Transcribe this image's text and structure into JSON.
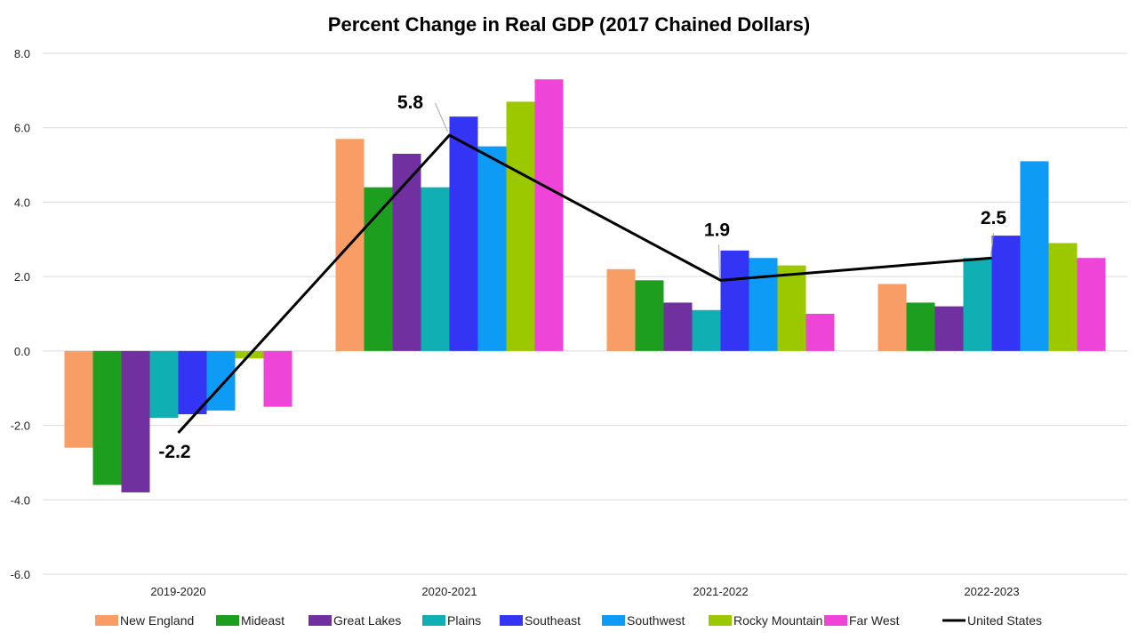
{
  "chart_data": {
    "type": "bar",
    "title": "Percent Change in Real GDP (2017 Chained Dollars)",
    "xlabel": "",
    "ylabel": "",
    "categories": [
      "2019-2020",
      "2020-2021",
      "2021-2022",
      "2022-2023"
    ],
    "ylim": [
      -6.0,
      8.0
    ],
    "yticks": [
      "8.0",
      "6.0",
      "4.0",
      "2.0",
      "0.0",
      "-2.0",
      "-4.0",
      "-6.0"
    ],
    "ytick_values": [
      8,
      6,
      4,
      2,
      0,
      -2,
      -4,
      -6
    ],
    "grid": true,
    "legend_position": "bottom",
    "series": [
      {
        "name": "New England",
        "color": "#F79D65",
        "values": [
          -2.6,
          5.7,
          2.2,
          1.8
        ]
      },
      {
        "name": "Mideast",
        "color": "#1E9E1E",
        "values": [
          -3.6,
          4.4,
          1.9,
          1.3
        ]
      },
      {
        "name": "Great Lakes",
        "color": "#7030A0",
        "values": [
          -3.8,
          5.3,
          1.3,
          1.2
        ]
      },
      {
        "name": "Plains",
        "color": "#0FAFB4",
        "values": [
          -1.8,
          4.4,
          1.1,
          2.5
        ]
      },
      {
        "name": "Southeast",
        "color": "#3434F5",
        "values": [
          -1.7,
          6.3,
          2.7,
          3.1
        ]
      },
      {
        "name": "Southwest",
        "color": "#0D9BF5",
        "values": [
          -1.6,
          5.5,
          2.5,
          5.1
        ]
      },
      {
        "name": "Rocky Mountain",
        "color": "#9CC800",
        "values": [
          -0.2,
          6.7,
          2.3,
          2.9
        ]
      },
      {
        "name": "Far West",
        "color": "#EE44D8",
        "values": [
          -1.5,
          7.3,
          1.0,
          2.5
        ]
      }
    ],
    "line_series": {
      "name": "United States",
      "color": "#000000",
      "type": "line",
      "values": [
        -2.2,
        5.8,
        1.9,
        2.5
      ],
      "data_labels": [
        "-2.2",
        "5.8",
        "1.9",
        "2.5"
      ]
    }
  }
}
